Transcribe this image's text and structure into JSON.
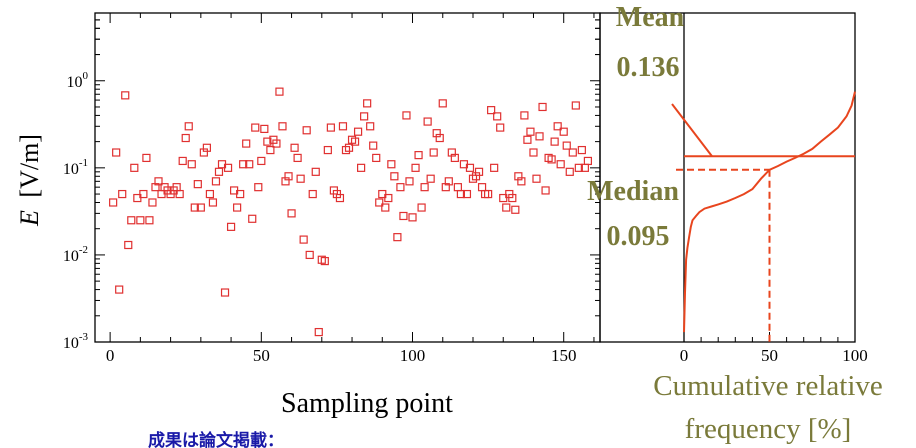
{
  "chart_data": [
    {
      "type": "scatter",
      "title": "",
      "xlabel": "Sampling point",
      "ylabel_symbol": "E",
      "ylabel_unit": "[V/m]",
      "xlim": [
        -5,
        162
      ],
      "ylim": [
        0.001,
        6
      ],
      "y_scale": "log",
      "x_ticks": [
        0,
        50,
        100,
        150
      ],
      "y_tick_labels": [
        {
          "base": "10",
          "exp": "0",
          "value": 1
        },
        {
          "base": "10",
          "exp": "-1",
          "value": 0.1
        },
        {
          "base": "10",
          "exp": "-2",
          "value": 0.01
        },
        {
          "base": "10",
          "exp": "-3",
          "value": 0.001
        }
      ],
      "marker_color": "#e03030",
      "points": [
        [
          1,
          0.04
        ],
        [
          2,
          0.15
        ],
        [
          3,
          0.004
        ],
        [
          4,
          0.05
        ],
        [
          5,
          0.68
        ],
        [
          6,
          0.013
        ],
        [
          7,
          0.025
        ],
        [
          8,
          0.1
        ],
        [
          9,
          0.045
        ],
        [
          10,
          0.025
        ],
        [
          11,
          0.05
        ],
        [
          12,
          0.13
        ],
        [
          13,
          0.025
        ],
        [
          14,
          0.04
        ],
        [
          15,
          0.06
        ],
        [
          16,
          0.07
        ],
        [
          17,
          0.05
        ],
        [
          18,
          0.06
        ],
        [
          19,
          0.055
        ],
        [
          20,
          0.05
        ],
        [
          21,
          0.055
        ],
        [
          22,
          0.06
        ],
        [
          23,
          0.05
        ],
        [
          24,
          0.12
        ],
        [
          25,
          0.22
        ],
        [
          26,
          0.3
        ],
        [
          27,
          0.11
        ],
        [
          28,
          0.035
        ],
        [
          29,
          0.065
        ],
        [
          30,
          0.035
        ],
        [
          31,
          0.15
        ],
        [
          32,
          0.17
        ],
        [
          33,
          0.05
        ],
        [
          34,
          0.04
        ],
        [
          35,
          0.07
        ],
        [
          36,
          0.09
        ],
        [
          37,
          0.11
        ],
        [
          38,
          0.0037
        ],
        [
          39,
          0.1
        ],
        [
          40,
          0.021
        ],
        [
          41,
          0.055
        ],
        [
          42,
          0.035
        ],
        [
          43,
          0.05
        ],
        [
          44,
          0.11
        ],
        [
          45,
          0.19
        ],
        [
          46,
          0.11
        ],
        [
          47,
          0.026
        ],
        [
          48,
          0.29
        ],
        [
          49,
          0.06
        ],
        [
          50,
          0.12
        ],
        [
          51,
          0.28
        ],
        [
          52,
          0.2
        ],
        [
          53,
          0.16
        ],
        [
          54,
          0.21
        ],
        [
          55,
          0.19
        ],
        [
          56,
          0.75
        ],
        [
          57,
          0.3
        ],
        [
          58,
          0.07
        ],
        [
          59,
          0.08
        ],
        [
          60,
          0.03
        ],
        [
          61,
          0.17
        ],
        [
          62,
          0.13
        ],
        [
          63,
          0.075
        ],
        [
          64,
          0.015
        ],
        [
          65,
          0.27
        ],
        [
          66,
          0.01
        ],
        [
          67,
          0.05
        ],
        [
          68,
          0.09
        ],
        [
          69,
          0.0013
        ],
        [
          70,
          0.0088
        ],
        [
          71,
          0.0085
        ],
        [
          72,
          0.16
        ],
        [
          73,
          0.29
        ],
        [
          74,
          0.055
        ],
        [
          75,
          0.05
        ],
        [
          76,
          0.045
        ],
        [
          77,
          0.3
        ],
        [
          78,
          0.16
        ],
        [
          79,
          0.17
        ],
        [
          80,
          0.21
        ],
        [
          81,
          0.2
        ],
        [
          82,
          0.26
        ],
        [
          83,
          0.1
        ],
        [
          84,
          0.39
        ],
        [
          85,
          0.55
        ],
        [
          86,
          0.3
        ],
        [
          87,
          0.18
        ],
        [
          88,
          0.13
        ],
        [
          89,
          0.04
        ],
        [
          90,
          0.05
        ],
        [
          91,
          0.035
        ],
        [
          92,
          0.045
        ],
        [
          93,
          0.11
        ],
        [
          94,
          0.08
        ],
        [
          95,
          0.016
        ],
        [
          96,
          0.06
        ],
        [
          97,
          0.028
        ],
        [
          98,
          0.4
        ],
        [
          99,
          0.07
        ],
        [
          100,
          0.027
        ],
        [
          101,
          0.1
        ],
        [
          102,
          0.14
        ],
        [
          103,
          0.035
        ],
        [
          104,
          0.06
        ],
        [
          105,
          0.34
        ],
        [
          106,
          0.075
        ],
        [
          107,
          0.15
        ],
        [
          108,
          0.25
        ],
        [
          109,
          0.22
        ],
        [
          110,
          0.55
        ],
        [
          111,
          0.06
        ],
        [
          112,
          0.07
        ],
        [
          113,
          0.15
        ],
        [
          114,
          0.13
        ],
        [
          115,
          0.06
        ],
        [
          116,
          0.05
        ],
        [
          117,
          0.11
        ],
        [
          118,
          0.05
        ],
        [
          119,
          0.1
        ],
        [
          120,
          0.075
        ],
        [
          121,
          0.08
        ],
        [
          122,
          0.09
        ],
        [
          123,
          0.06
        ],
        [
          124,
          0.05
        ],
        [
          125,
          0.05
        ],
        [
          126,
          0.46
        ],
        [
          127,
          0.1
        ],
        [
          128,
          0.39
        ],
        [
          129,
          0.29
        ],
        [
          130,
          0.045
        ],
        [
          131,
          0.035
        ],
        [
          132,
          0.05
        ],
        [
          133,
          0.045
        ],
        [
          134,
          0.033
        ],
        [
          135,
          0.08
        ],
        [
          136,
          0.07
        ],
        [
          137,
          0.4
        ],
        [
          138,
          0.21
        ],
        [
          139,
          0.26
        ],
        [
          140,
          0.15
        ],
        [
          141,
          0.075
        ],
        [
          142,
          0.23
        ],
        [
          143,
          0.5
        ],
        [
          144,
          0.055
        ],
        [
          145,
          0.13
        ],
        [
          146,
          0.125
        ],
        [
          147,
          0.2
        ],
        [
          148,
          0.3
        ],
        [
          149,
          0.11
        ],
        [
          150,
          0.26
        ],
        [
          151,
          0.18
        ],
        [
          152,
          0.09
        ],
        [
          153,
          0.15
        ],
        [
          154,
          0.52
        ],
        [
          155,
          0.1
        ],
        [
          156,
          0.16
        ],
        [
          157,
          0.1
        ],
        [
          158,
          0.12
        ]
      ]
    },
    {
      "type": "line",
      "xlabel_line1": "Cumulative relative",
      "xlabel_line2": "frequency [%]",
      "xlim": [
        0,
        100
      ],
      "x_ticks": [
        0,
        50,
        100
      ],
      "y_scale": "log",
      "ylim": [
        0.001,
        6
      ],
      "line_color": "#e8451e",
      "cdf": [
        [
          0,
          0.0013
        ],
        [
          0.6,
          0.0037
        ],
        [
          1.2,
          0.0088
        ],
        [
          2,
          0.012
        ],
        [
          3,
          0.016
        ],
        [
          4,
          0.021
        ],
        [
          5,
          0.025
        ],
        [
          7,
          0.028
        ],
        [
          9,
          0.031
        ],
        [
          12,
          0.034
        ],
        [
          16,
          0.036
        ],
        [
          20,
          0.038
        ],
        [
          25,
          0.041
        ],
        [
          30,
          0.045
        ],
        [
          35,
          0.05
        ],
        [
          40,
          0.057
        ],
        [
          45,
          0.075
        ],
        [
          50,
          0.095
        ],
        [
          55,
          0.105
        ],
        [
          60,
          0.118
        ],
        [
          65,
          0.13
        ],
        [
          70,
          0.145
        ],
        [
          75,
          0.165
        ],
        [
          80,
          0.2
        ],
        [
          85,
          0.24
        ],
        [
          90,
          0.29
        ],
        [
          95,
          0.39
        ],
        [
          98,
          0.52
        ],
        [
          100,
          0.75
        ]
      ],
      "mean": {
        "label": "Mean",
        "value": "0.136",
        "y": 0.136
      },
      "median": {
        "label": "Median",
        "value": "0.095",
        "y": 0.095,
        "x": 50
      }
    }
  ],
  "footer_text": "成果は論文掲載："
}
